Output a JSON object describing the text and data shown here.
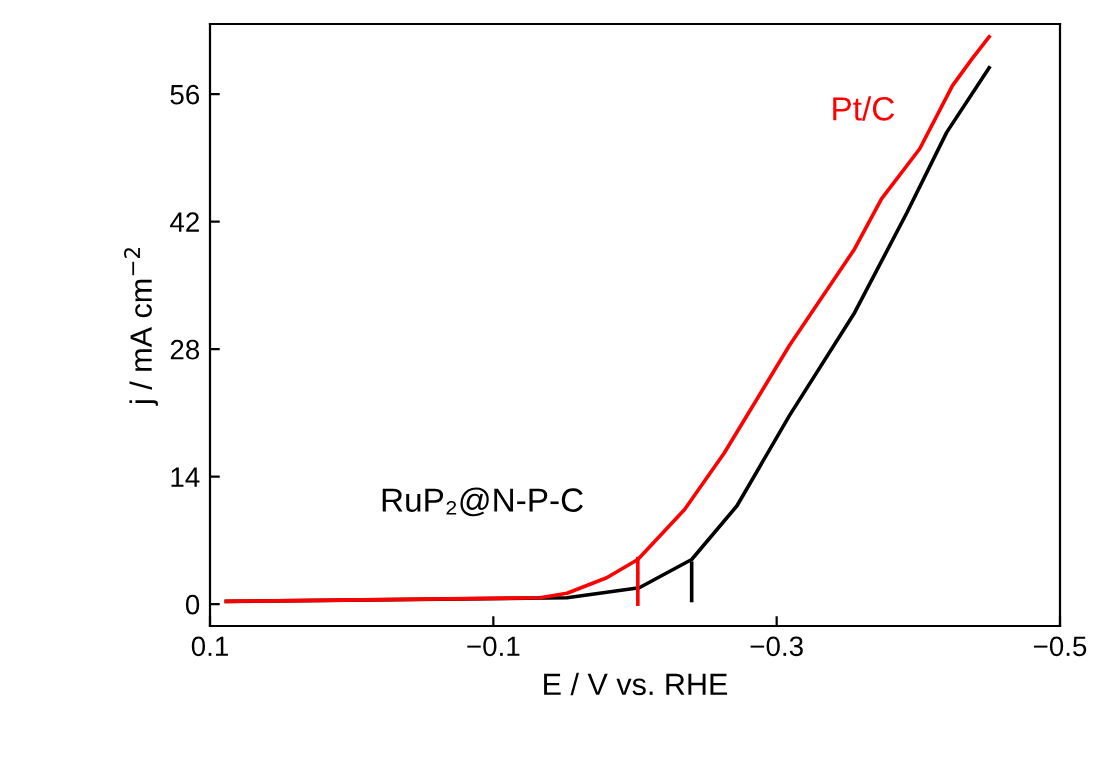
{
  "chart_data": {
    "type": "line",
    "xlabel": "E / V vs. RHE",
    "ylabel": "j / mA cm$^{−2}$",
    "xlim": [
      0.1,
      -0.5
    ],
    "xticks": [
      0.1,
      {
        "value": -0.1,
        "label": "−0.1"
      },
      {
        "value": -0.3,
        "label": "−0.3"
      },
      {
        "value": -0.5,
        "label": "−0.5"
      }
    ],
    "ylim": [
      -2.4,
      63.7
    ],
    "yticks": [
      0,
      14,
      28,
      42,
      56
    ],
    "grid": false,
    "legend": false,
    "series": [
      {
        "name": "RuP₂@N-P-C",
        "color": "#000000",
        "x": [
          0.0885,
          -0.152,
          -0.203,
          -0.24,
          -0.272,
          -0.309,
          -0.355,
          -0.392,
          -0.42,
          -0.45
        ],
        "values": [
          0.3,
          0.7,
          1.8,
          4.9,
          10.8,
          20.7,
          32.0,
          43.0,
          51.8,
          58.9
        ]
      },
      {
        "name": "Pt/C",
        "color": "#ff0000",
        "x": [
          0.0885,
          -0.133,
          -0.152,
          -0.18,
          -0.202,
          -0.235,
          -0.263,
          -0.309,
          -0.355,
          -0.374,
          -0.401,
          -0.424,
          -0.438,
          -0.45
        ],
        "values": [
          0.3,
          0.7,
          1.2,
          2.9,
          4.9,
          10.4,
          16.6,
          28.4,
          39.0,
          44.5,
          50.0,
          56.9,
          59.9,
          62.3
        ]
      },
      {
        "color": "#ff0000",
        "x": [
          -0.202,
          -0.202
        ],
        "values": [
          0,
          5
        ]
      },
      {
        "color": "#000000",
        "x": [
          -0.24,
          -0.24
        ],
        "values": [
          0.4,
          4.5
        ]
      }
    ]
  }
}
